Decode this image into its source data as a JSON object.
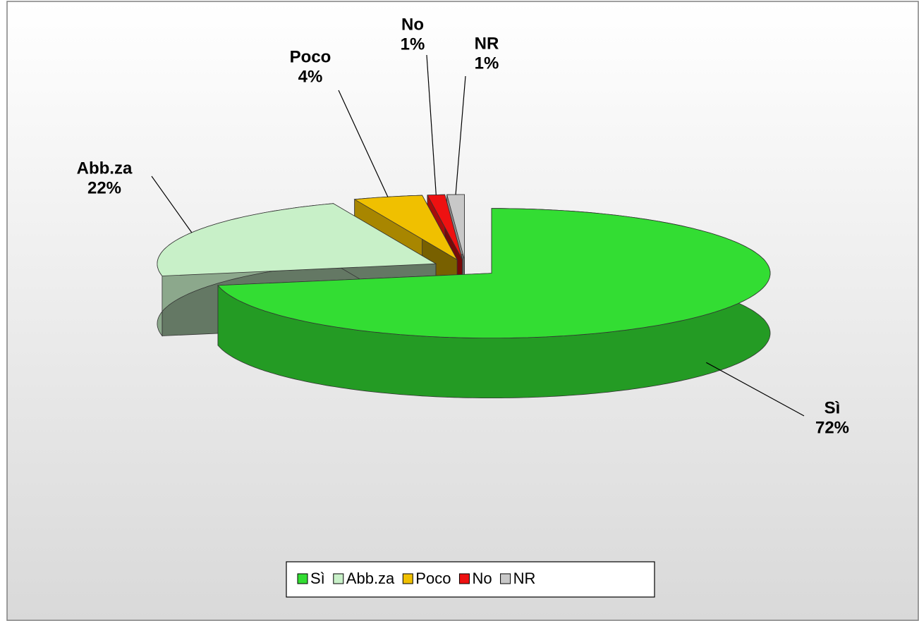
{
  "chart_data": {
    "type": "pie",
    "categories": [
      "Sì",
      "Abb.za",
      "Poco",
      "No",
      "NR"
    ],
    "values": [
      72,
      22,
      4,
      1,
      1
    ],
    "value_labels": [
      "72%",
      "22%",
      "4%",
      "1%",
      "1%"
    ],
    "colors": [
      "#33dd33",
      "#c8f0c8",
      "#f0c000",
      "#ee1111",
      "#c8c8c8"
    ],
    "legend": "bottom"
  }
}
